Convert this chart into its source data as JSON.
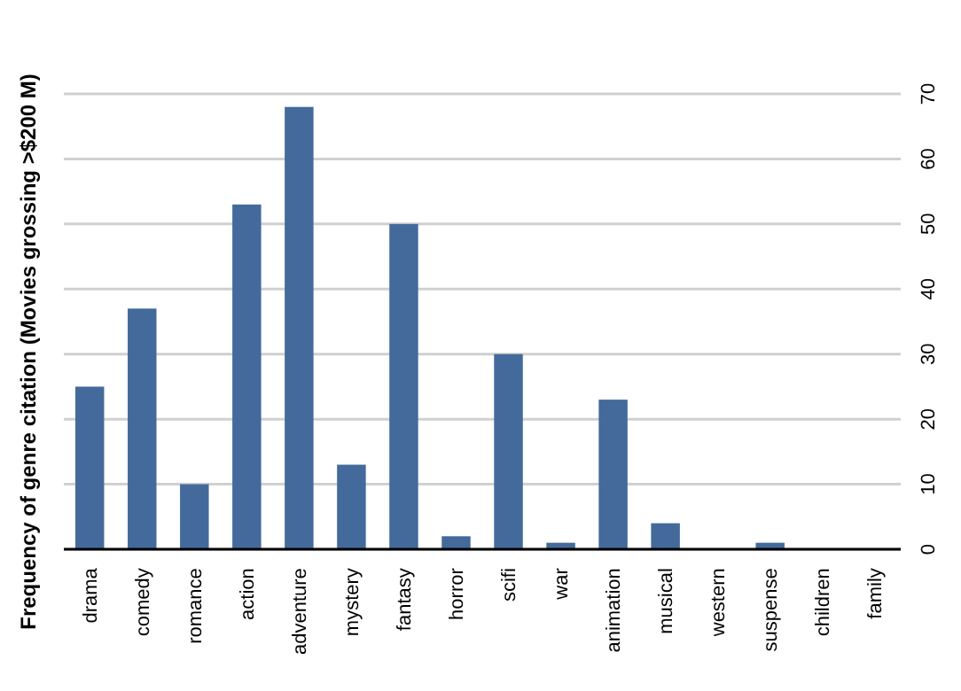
{
  "chart_data": {
    "type": "bar",
    "ylabel": "Frequency of genre citation (Movies grossing >$200 M)",
    "categories": [
      "drama",
      "comedy",
      "romance",
      "action",
      "adventure",
      "mystery",
      "fantasy",
      "horror",
      "scifi",
      "war",
      "animation",
      "musical",
      "western",
      "suspense",
      "children",
      "family"
    ],
    "values": [
      25,
      37,
      10,
      53,
      68,
      13,
      50,
      2,
      30,
      1,
      23,
      4,
      0,
      1,
      0,
      0
    ],
    "color": "#446a9b",
    "ylim": [
      0,
      70
    ],
    "yticks": [
      0,
      10,
      20,
      30,
      40,
      50,
      60,
      70
    ],
    "grid": true
  }
}
